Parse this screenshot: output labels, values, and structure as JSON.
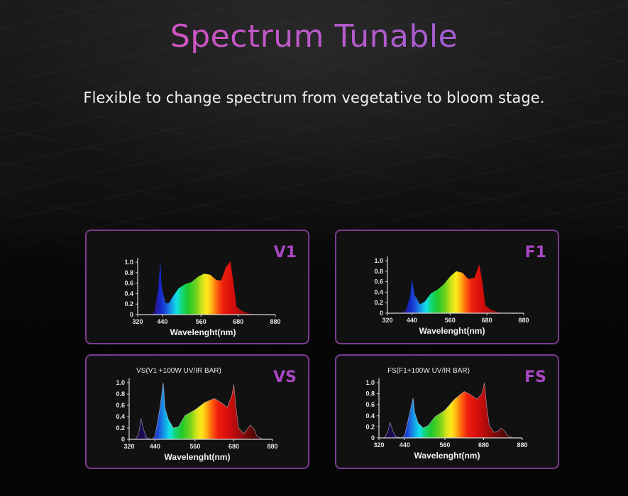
{
  "header": {
    "title": "Spectrum Tunable",
    "subtitle": "Flexible to change spectrum from vegetative to bloom stage."
  },
  "colors": {
    "title_start": "#cf53c2",
    "title_end": "#a35ed3",
    "card_border": "#7b3b94",
    "card_label": "#a947c4",
    "background": "#0b0b0b"
  },
  "cards": [
    {
      "id": "V1",
      "label": "V1",
      "chart_title": ""
    },
    {
      "id": "F1",
      "label": "F1",
      "chart_title": ""
    },
    {
      "id": "VS",
      "label": "VS",
      "chart_title": "VS(V1 +100W UV/IR BAR)"
    },
    {
      "id": "FS",
      "label": "FS",
      "chart_title": "FS(F1+100W UV/IR BAR)"
    }
  ],
  "axis": {
    "x_ticks": [
      "320",
      "440",
      "560",
      "680",
      "880"
    ],
    "y_ticks": [
      "0",
      "0.2",
      "0.4",
      "0.6",
      "0.8",
      "1.0"
    ],
    "x_label": "Wavelenght(nm)"
  },
  "chart_data": [
    {
      "type": "area",
      "title": "V1",
      "xlabel": "Wavelenght(nm)",
      "ylabel": "",
      "x_ticks": [
        320,
        440,
        560,
        680,
        880
      ],
      "ylim": [
        0,
        1.0
      ],
      "grid": false,
      "legend": null,
      "x": [
        380,
        400,
        420,
        430,
        435,
        440,
        450,
        460,
        470,
        490,
        510,
        530,
        550,
        570,
        590,
        610,
        625,
        640,
        655,
        665,
        675,
        700,
        740,
        780
      ],
      "y": [
        0.0,
        0.05,
        0.5,
        1.05,
        0.6,
        0.45,
        0.22,
        0.22,
        0.32,
        0.5,
        0.58,
        0.62,
        0.72,
        0.78,
        0.76,
        0.66,
        0.65,
        0.9,
        1.02,
        0.6,
        0.15,
        0.07,
        0.02,
        0.0
      ]
    },
    {
      "type": "area",
      "title": "F1",
      "xlabel": "Wavelenght(nm)",
      "ylabel": "",
      "x_ticks": [
        320,
        440,
        560,
        680,
        880
      ],
      "ylim": [
        0,
        1.0
      ],
      "grid": false,
      "legend": null,
      "x": [
        385,
        410,
        430,
        440,
        448,
        455,
        465,
        480,
        500,
        520,
        540,
        560,
        580,
        600,
        620,
        640,
        655,
        665,
        675,
        700,
        740,
        780
      ],
      "y": [
        0.0,
        0.05,
        0.3,
        0.65,
        0.35,
        0.28,
        0.17,
        0.22,
        0.38,
        0.45,
        0.55,
        0.7,
        0.8,
        0.77,
        0.65,
        0.68,
        0.93,
        0.6,
        0.15,
        0.07,
        0.02,
        0.0
      ]
    },
    {
      "type": "area",
      "title": "VS(V1 +100W UV/IR BAR)",
      "xlabel": "Wavelenght(nm)",
      "ylabel": "",
      "x_ticks": [
        320,
        440,
        560,
        680,
        880
      ],
      "ylim": [
        0,
        1.0
      ],
      "grid": false,
      "legend": null,
      "x": [
        350,
        365,
        375,
        385,
        400,
        425,
        440,
        455,
        465,
        470,
        480,
        495,
        510,
        530,
        560,
        590,
        620,
        640,
        660,
        675,
        680,
        690,
        705,
        730,
        750,
        765,
        785,
        800,
        830
      ],
      "y": [
        0.0,
        0.1,
        0.37,
        0.2,
        0.03,
        0.0,
        0.05,
        0.55,
        1.0,
        0.55,
        0.35,
        0.2,
        0.22,
        0.42,
        0.52,
        0.65,
        0.72,
        0.65,
        0.56,
        0.8,
        0.97,
        0.6,
        0.2,
        0.1,
        0.18,
        0.25,
        0.18,
        0.05,
        0.0
      ]
    },
    {
      "type": "area",
      "title": "FS(F1+100W UV/IR BAR)",
      "xlabel": "Wavelenght(nm)",
      "ylabel": "",
      "x_ticks": [
        320,
        440,
        560,
        680,
        880
      ],
      "ylim": [
        0,
        1.0
      ],
      "grid": false,
      "legend": null,
      "x": [
        345,
        360,
        372,
        385,
        400,
        425,
        440,
        455,
        465,
        470,
        480,
        495,
        510,
        530,
        560,
        590,
        620,
        640,
        660,
        675,
        685,
        695,
        710,
        735,
        755,
        770,
        790,
        805,
        830
      ],
      "y": [
        0.0,
        0.1,
        0.28,
        0.12,
        0.02,
        0.0,
        0.05,
        0.45,
        0.72,
        0.45,
        0.27,
        0.18,
        0.22,
        0.38,
        0.5,
        0.7,
        0.84,
        0.78,
        0.7,
        0.8,
        1.0,
        0.6,
        0.22,
        0.1,
        0.12,
        0.18,
        0.12,
        0.04,
        0.0
      ]
    }
  ]
}
